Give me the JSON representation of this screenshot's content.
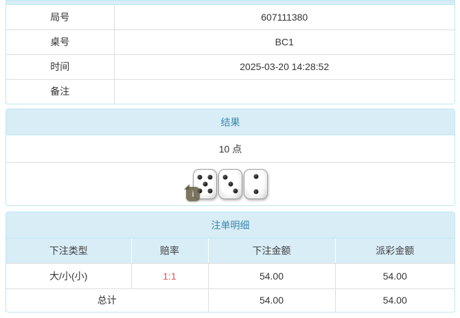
{
  "colors": {
    "panel_border": "#bce8f1",
    "header_bg": "#d9edf7",
    "header_text": "#3a87ad",
    "inner_border": "#dddddd",
    "text": "#333333",
    "odds_red": "#dd5050"
  },
  "game_info": {
    "rows": [
      {
        "label": "局号",
        "value": "607111380"
      },
      {
        "label": "桌号",
        "value": "BC1"
      },
      {
        "label": "时间",
        "value": "2025-03-20 14:28:52"
      },
      {
        "label": "备注",
        "value": ""
      }
    ]
  },
  "result_panel": {
    "title": "结果",
    "points": "10 点",
    "dice": [
      5,
      3,
      2
    ],
    "info_badge_glyph": "i"
  },
  "bet_panel": {
    "title": "注单明细",
    "columns": [
      "下注类型",
      "赔率",
      "下注金额",
      "派彩金额"
    ],
    "rows": [
      {
        "bet_type": "大/小(小)",
        "odds": "1:1",
        "bet_amount": "54.00",
        "payout_amount": "54.00"
      }
    ],
    "total": {
      "label": "总计",
      "bet_amount": "54.00",
      "payout_amount": "54.00"
    }
  }
}
